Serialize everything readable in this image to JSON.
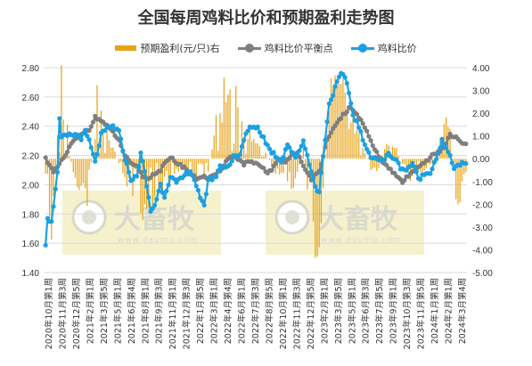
{
  "title": "全国每周鸡料比价和预期盈利走势图",
  "legend": {
    "profit": "预期盈利(元/只)右",
    "breakeven": "鸡料比价平衡点",
    "ratio": "鸡料比价"
  },
  "watermark": {
    "brand": "大畜牧",
    "url": "www.dxumu.com"
  },
  "colors": {
    "profit": "#E8A317",
    "breakeven": "#7F7F7F",
    "ratio": "#1BA1E2",
    "grid": "#D9D9D9",
    "watermark_bg": "#F5EFC8",
    "axis_text": "#333333"
  },
  "chart_data": {
    "type": "combo (bar + line)",
    "left_axis": {
      "min": 1.4,
      "max": 2.8,
      "ticks": [
        "1.40",
        "1.60",
        "1.80",
        "2.00",
        "2.20",
        "2.40",
        "2.60",
        "2.80"
      ]
    },
    "right_axis": {
      "min": -5.0,
      "max": 4.0,
      "ticks": [
        "-5.00",
        "-4.00",
        "-3.00",
        "-2.00",
        "-1.00",
        "0.00",
        "1.00",
        "2.00",
        "3.00",
        "4.00"
      ]
    },
    "x_labels": [
      "2020年10月第1周",
      "2020年11月第3周",
      "2020年12月第5周",
      "2021年2月第1周",
      "2021年3月第5周",
      "2021年5月第1周",
      "2021年6月第4周",
      "2021年8月第1周",
      "2021年9月第3周",
      "2021年11月第1周",
      "2021年12月第3周",
      "2022年1月第5周",
      "2022年3月第1周",
      "2022年4月第4周",
      "2022年6月第1周",
      "2022年7月第3周",
      "2022年8月第5周",
      "2022年10月第1周",
      "2022年11月第3周",
      "2022年12月第5周",
      "2023年2月第1周",
      "2023年3月第5周",
      "2023年5月第1周",
      "2023年6月第3周",
      "2023年7月第5周",
      "2023年9月第1周",
      "2023年10月第3周",
      "2023年11月第5周",
      "2024年1月第1周",
      "2024年2月第1周",
      "2024年3月第4周"
    ],
    "series_ratio_keypoints": [
      [
        0,
        1.6
      ],
      [
        1,
        1.78
      ],
      [
        2,
        1.76
      ],
      [
        3,
        1.74
      ],
      [
        5,
        1.98
      ],
      [
        6,
        2.08
      ],
      [
        7,
        2.44
      ],
      [
        8,
        2.32
      ],
      [
        10,
        2.33
      ],
      [
        13,
        2.34
      ],
      [
        16,
        2.34
      ],
      [
        18,
        2.32
      ],
      [
        20,
        2.36
      ],
      [
        22,
        2.3
      ],
      [
        25,
        2.15
      ],
      [
        28,
        2.34
      ],
      [
        31,
        2.38
      ],
      [
        34,
        2.4
      ],
      [
        37,
        2.36
      ],
      [
        40,
        2.18
      ],
      [
        43,
        2.04
      ],
      [
        46,
        2.05
      ],
      [
        48,
        2.22
      ],
      [
        50,
        2.08
      ],
      [
        53,
        1.82
      ],
      [
        55,
        1.86
      ],
      [
        58,
        2.0
      ],
      [
        60,
        1.92
      ],
      [
        63,
        2.06
      ],
      [
        66,
        2.01
      ],
      [
        70,
        2.06
      ],
      [
        73,
        2.1
      ],
      [
        76,
        2.0
      ],
      [
        78,
        1.9
      ],
      [
        80,
        1.85
      ],
      [
        82,
        2.04
      ],
      [
        85,
        2.04
      ],
      [
        88,
        2.12
      ],
      [
        92,
        2.12
      ],
      [
        95,
        2.2
      ],
      [
        98,
        2.2
      ],
      [
        101,
        2.35
      ],
      [
        104,
        2.4
      ],
      [
        107,
        2.39
      ],
      [
        110,
        2.32
      ],
      [
        113,
        2.24
      ],
      [
        116,
        2.2
      ],
      [
        119,
        2.16
      ],
      [
        122,
        2.28
      ],
      [
        126,
        2.18
      ],
      [
        130,
        2.3
      ],
      [
        134,
        2.1
      ],
      [
        136,
        1.98
      ],
      [
        138,
        1.95
      ],
      [
        140,
        2.2
      ],
      [
        143,
        2.55
      ],
      [
        146,
        2.66
      ],
      [
        149,
        2.76
      ],
      [
        152,
        2.7
      ],
      [
        155,
        2.48
      ],
      [
        158,
        2.4
      ],
      [
        161,
        2.26
      ],
      [
        164,
        2.2
      ],
      [
        167,
        2.18
      ],
      [
        170,
        2.16
      ],
      [
        173,
        2.21
      ],
      [
        176,
        2.18
      ],
      [
        179,
        2.12
      ],
      [
        182,
        2.1
      ],
      [
        185,
        2.15
      ],
      [
        188,
        2.04
      ],
      [
        191,
        2.07
      ],
      [
        194,
        2.09
      ],
      [
        197,
        2.18
      ],
      [
        200,
        2.3
      ],
      [
        203,
        2.22
      ],
      [
        206,
        2.12
      ],
      [
        209,
        2.14
      ],
      [
        212,
        2.14
      ]
    ],
    "series_breakeven_keypoints": [
      [
        0,
        2.18
      ],
      [
        2,
        2.14
      ],
      [
        4,
        2.08
      ],
      [
        7,
        2.14
      ],
      [
        10,
        2.2
      ],
      [
        13,
        2.28
      ],
      [
        16,
        2.32
      ],
      [
        19,
        2.35
      ],
      [
        22,
        2.38
      ],
      [
        25,
        2.46
      ],
      [
        28,
        2.44
      ],
      [
        31,
        2.4
      ],
      [
        34,
        2.36
      ],
      [
        37,
        2.3
      ],
      [
        40,
        2.2
      ],
      [
        43,
        2.14
      ],
      [
        46,
        2.12
      ],
      [
        49,
        2.06
      ],
      [
        52,
        2.04
      ],
      [
        55,
        2.08
      ],
      [
        58,
        2.1
      ],
      [
        61,
        2.16
      ],
      [
        64,
        2.18
      ],
      [
        67,
        2.14
      ],
      [
        70,
        2.12
      ],
      [
        73,
        2.08
      ],
      [
        76,
        2.04
      ],
      [
        79,
        2.06
      ],
      [
        82,
        2.04
      ],
      [
        85,
        2.06
      ],
      [
        88,
        2.1
      ],
      [
        91,
        2.16
      ],
      [
        94,
        2.2
      ],
      [
        97,
        2.18
      ],
      [
        100,
        2.14
      ],
      [
        103,
        2.16
      ],
      [
        106,
        2.14
      ],
      [
        109,
        2.12
      ],
      [
        112,
        2.08
      ],
      [
        115,
        2.12
      ],
      [
        118,
        2.18
      ],
      [
        121,
        2.16
      ],
      [
        124,
        2.2
      ],
      [
        127,
        2.22
      ],
      [
        130,
        2.12
      ],
      [
        134,
        2.04
      ],
      [
        138,
        2.1
      ],
      [
        142,
        2.3
      ],
      [
        146,
        2.4
      ],
      [
        150,
        2.48
      ],
      [
        153,
        2.52
      ],
      [
        156,
        2.5
      ],
      [
        159,
        2.44
      ],
      [
        162,
        2.36
      ],
      [
        165,
        2.26
      ],
      [
        168,
        2.2
      ],
      [
        171,
        2.14
      ],
      [
        174,
        2.1
      ],
      [
        177,
        2.06
      ],
      [
        180,
        2.02
      ],
      [
        183,
        2.06
      ],
      [
        186,
        2.1
      ],
      [
        189,
        2.14
      ],
      [
        192,
        2.16
      ],
      [
        195,
        2.2
      ],
      [
        198,
        2.22
      ],
      [
        201,
        2.26
      ],
      [
        204,
        2.34
      ],
      [
        207,
        2.32
      ],
      [
        210,
        2.28
      ],
      [
        212,
        2.28
      ]
    ],
    "series_profit_amplitude_keypoints": [
      [
        0,
        -4.4
      ],
      [
        3,
        -3.0
      ],
      [
        6,
        1.0
      ],
      [
        8,
        3.6
      ],
      [
        10,
        2.2
      ],
      [
        14,
        -1.0
      ],
      [
        18,
        -1.8
      ],
      [
        22,
        -2.2
      ],
      [
        26,
        2.6
      ],
      [
        30,
        1.2
      ],
      [
        34,
        0.6
      ],
      [
        38,
        -0.6
      ],
      [
        42,
        -1.4
      ],
      [
        46,
        -3.2
      ],
      [
        50,
        -2.6
      ],
      [
        55,
        -1.6
      ],
      [
        60,
        -1.0
      ],
      [
        65,
        -0.6
      ],
      [
        70,
        -0.4
      ],
      [
        75,
        -0.8
      ],
      [
        80,
        -1.6
      ],
      [
        86,
        1.6
      ],
      [
        90,
        3.0
      ],
      [
        95,
        2.8
      ],
      [
        100,
        1.6
      ],
      [
        105,
        0.8
      ],
      [
        110,
        0.6
      ],
      [
        115,
        -0.6
      ],
      [
        120,
        -0.8
      ],
      [
        125,
        -1.2
      ],
      [
        130,
        0.4
      ],
      [
        134,
        -2.8
      ],
      [
        137,
        -4.6
      ],
      [
        140,
        -1.2
      ],
      [
        144,
        3.2
      ],
      [
        148,
        3.0
      ],
      [
        152,
        2.6
      ],
      [
        156,
        1.4
      ],
      [
        160,
        0.6
      ],
      [
        164,
        -0.4
      ],
      [
        168,
        -0.6
      ],
      [
        172,
        0.8
      ],
      [
        176,
        0.6
      ],
      [
        180,
        -0.2
      ],
      [
        184,
        -1.0
      ],
      [
        188,
        -0.6
      ],
      [
        192,
        -0.4
      ],
      [
        196,
        -0.2
      ],
      [
        200,
        1.2
      ],
      [
        203,
        2.4
      ],
      [
        206,
        -1.4
      ],
      [
        209,
        -1.8
      ],
      [
        212,
        -0.8
      ]
    ]
  }
}
